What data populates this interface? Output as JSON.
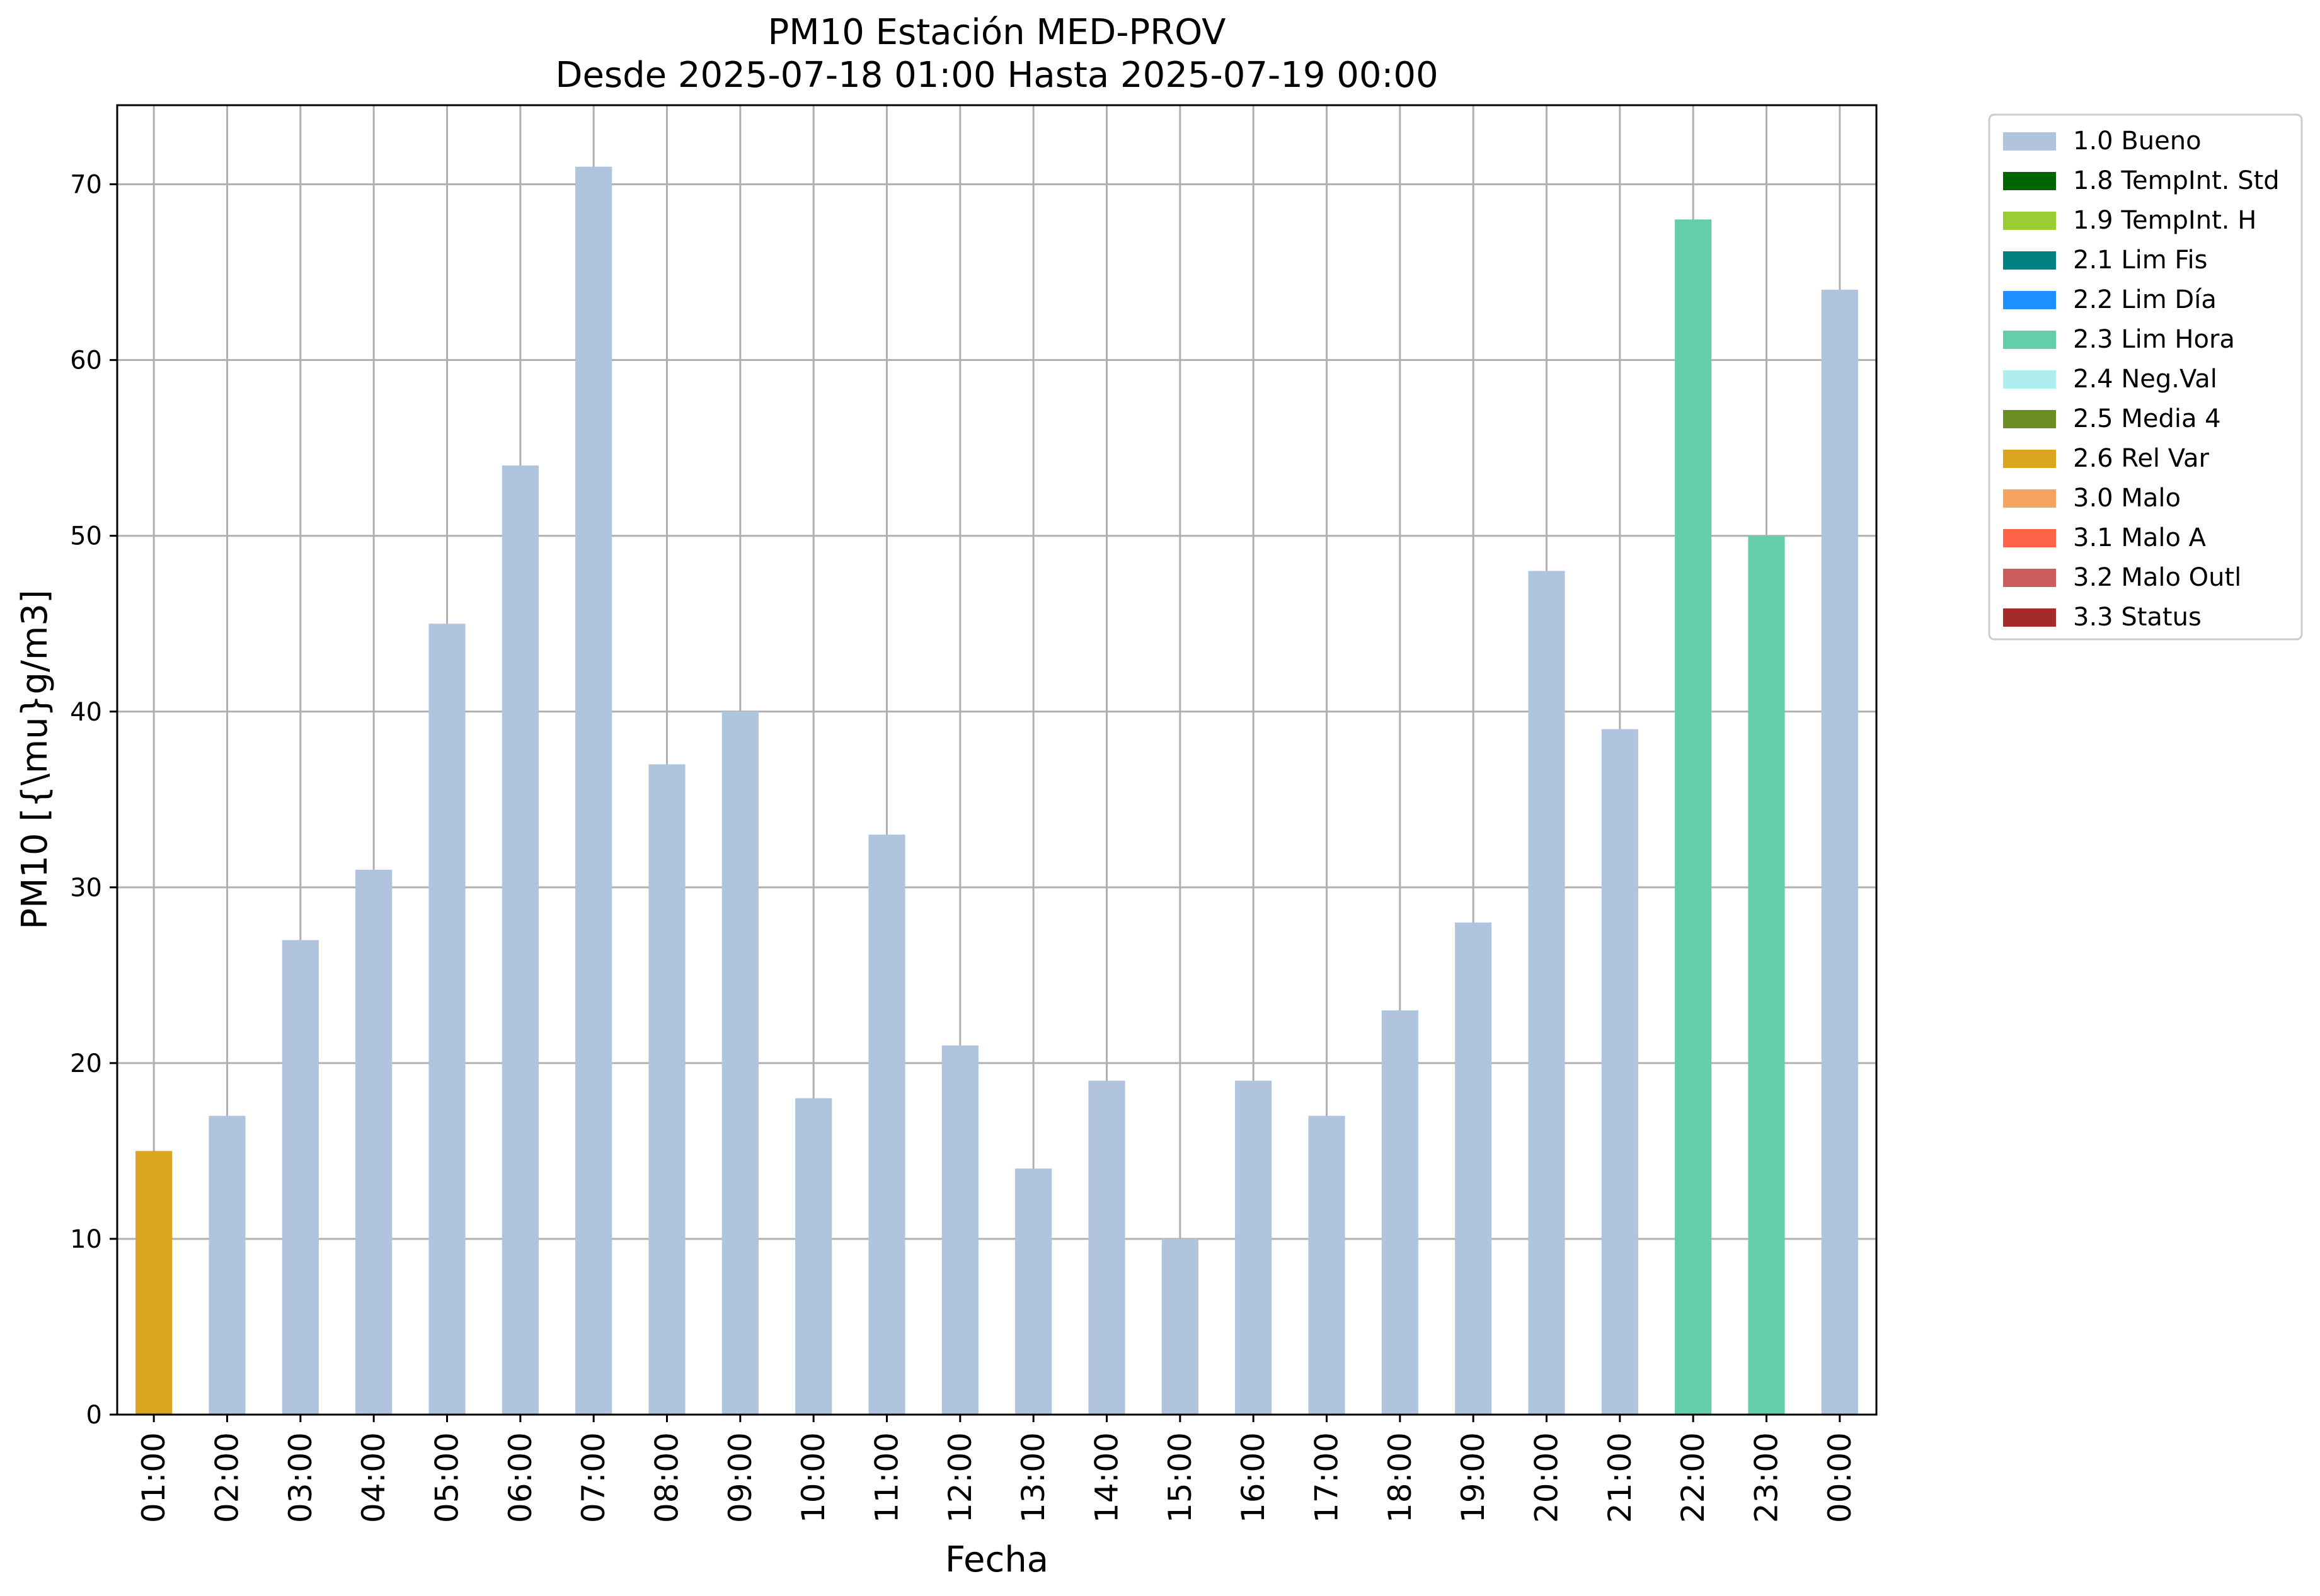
{
  "chart_data": {
    "type": "bar",
    "title": "PM10 Estación MED-PROV",
    "subtitle": "Desde 2025-07-18 01:00 Hasta 2025-07-19 00:00",
    "xlabel": "Fecha",
    "ylabel": "PM10 [{\\mu}g/m3]",
    "ylim": [
      0,
      74.5
    ],
    "yticks": [
      0,
      10,
      20,
      30,
      40,
      50,
      60,
      70
    ],
    "grid": true,
    "legend_position": "outside-top-right",
    "categories": [
      "01:00",
      "02:00",
      "03:00",
      "04:00",
      "05:00",
      "06:00",
      "07:00",
      "08:00",
      "09:00",
      "10:00",
      "11:00",
      "12:00",
      "13:00",
      "14:00",
      "15:00",
      "16:00",
      "17:00",
      "18:00",
      "19:00",
      "20:00",
      "21:00",
      "22:00",
      "23:00",
      "00:00"
    ],
    "values": [
      15,
      17,
      27,
      31,
      45,
      54,
      71,
      37,
      40,
      18,
      33,
      21,
      14,
      19,
      10,
      19,
      17,
      23,
      28,
      48,
      39,
      68,
      50,
      64
    ],
    "flags": [
      "2.6 Rel Var",
      "1.0 Bueno",
      "1.0 Bueno",
      "1.0 Bueno",
      "1.0 Bueno",
      "1.0 Bueno",
      "1.0 Bueno",
      "1.0 Bueno",
      "1.0 Bueno",
      "1.0 Bueno",
      "1.0 Bueno",
      "1.0 Bueno",
      "1.0 Bueno",
      "1.0 Bueno",
      "1.0 Bueno",
      "1.0 Bueno",
      "1.0 Bueno",
      "1.0 Bueno",
      "1.0 Bueno",
      "1.0 Bueno",
      "1.0 Bueno",
      "2.3 Lim Hora",
      "2.3 Lim Hora",
      "1.0 Bueno"
    ],
    "legend": [
      {
        "label": "1.0 Bueno",
        "color": "#b0c4de"
      },
      {
        "label": "1.8 TempInt. Std",
        "color": "#006400"
      },
      {
        "label": "1.9 TempInt. H",
        "color": "#9acd32"
      },
      {
        "label": "2.1 Lim Fis",
        "color": "#008080"
      },
      {
        "label": "2.2 Lim Día",
        "color": "#1e90ff"
      },
      {
        "label": "2.3 Lim Hora",
        "color": "#66cdaa"
      },
      {
        "label": "2.4 Neg.Val",
        "color": "#afeeee"
      },
      {
        "label": "2.5 Media 4",
        "color": "#6b8e23"
      },
      {
        "label": "2.6 Rel Var",
        "color": "#daa520"
      },
      {
        "label": "3.0 Malo",
        "color": "#f4a460"
      },
      {
        "label": "3.1 Malo A",
        "color": "#ff6347"
      },
      {
        "label": "3.2 Malo Outl",
        "color": "#cd5c5c"
      },
      {
        "label": "3.3 Status",
        "color": "#a52a2a"
      }
    ]
  }
}
